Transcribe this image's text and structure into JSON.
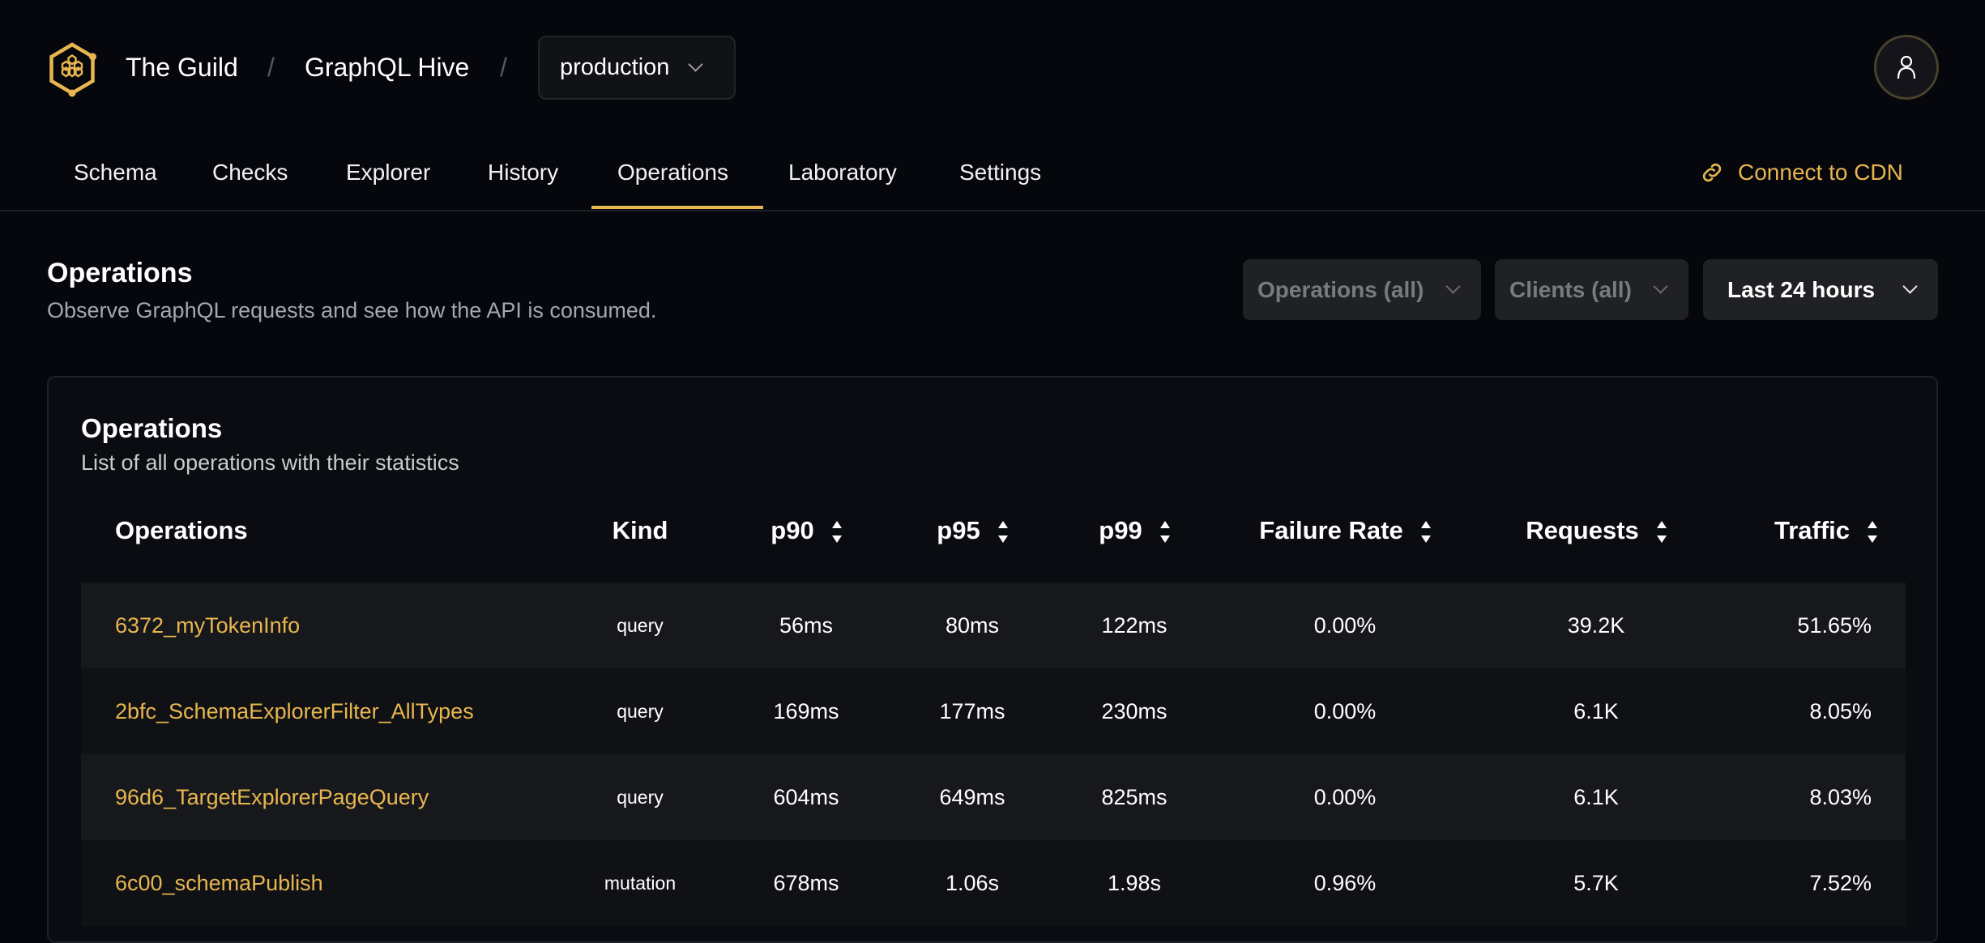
{
  "header": {
    "org": "The Guild",
    "project": "GraphQL Hive",
    "separator": "/",
    "environment": "production"
  },
  "nav": {
    "tabs": [
      "Schema",
      "Checks",
      "Explorer",
      "History",
      "Operations",
      "Laboratory",
      "Settings"
    ],
    "active": "Operations",
    "cdn_label": "Connect to CDN"
  },
  "page": {
    "title": "Operations",
    "subtitle": "Observe GraphQL requests and see how the API is consumed."
  },
  "filters": {
    "operations": "Operations (all)",
    "clients": "Clients (all)",
    "period": "Last 24 hours"
  },
  "card": {
    "title": "Operations",
    "subtitle": "List of all operations with their statistics"
  },
  "table": {
    "columns": [
      "Operations",
      "Kind",
      "p90",
      "p95",
      "p99",
      "Failure Rate",
      "Requests",
      "Traffic"
    ],
    "rows": [
      [
        "6372_myTokenInfo",
        "query",
        "56ms",
        "80ms",
        "122ms",
        "0.00%",
        "39.2K",
        "51.65%"
      ],
      [
        "2bfc_SchemaExplorerFilter_AllTypes",
        "query",
        "169ms",
        "177ms",
        "230ms",
        "0.00%",
        "6.1K",
        "8.05%"
      ],
      [
        "96d6_TargetExplorerPageQuery",
        "query",
        "604ms",
        "649ms",
        "825ms",
        "0.00%",
        "6.1K",
        "8.03%"
      ],
      [
        "6c00_schemaPublish",
        "mutation",
        "678ms",
        "1.06s",
        "1.98s",
        "0.96%",
        "5.7K",
        "7.52%"
      ]
    ]
  },
  "colors": {
    "accent": "#e8b64f",
    "background": "#05070d"
  }
}
